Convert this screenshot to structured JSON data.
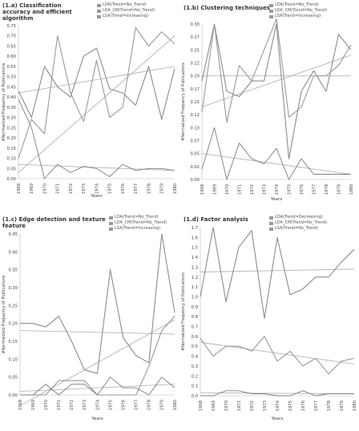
{
  "chart_data": [
    {
      "type": "line",
      "title": "(1.a) Classification accuracy and efficient algorithm",
      "xlabel": "Years",
      "ylabel": "#Normalized Frequency of Publications",
      "x": [
        "1968",
        "1969",
        "1970",
        "1971",
        "1972",
        "1973",
        "1974",
        "1975",
        "1976",
        "1977",
        "1978",
        "1979",
        "1980"
      ],
      "ylim": [
        0,
        0.75
      ],
      "yticks": [
        "0.00",
        "0.05",
        "0.10",
        "0.15",
        "0.20",
        "0.25",
        "0.30",
        "0.35",
        "0.40",
        "0.45",
        "0.50",
        "0.55",
        "0.60",
        "0.65",
        "0.70",
        "0.75"
      ],
      "legend_position": "top-right",
      "series": [
        {
          "name": "LDA(Trend=No_Trend)",
          "values": [
            0.43,
            0.3,
            0.55,
            0.45,
            0.4,
            0.6,
            0.64,
            0.44,
            0.42,
            0.36,
            0.55,
            0.29,
            0.54
          ]
        },
        {
          "name": "LDA_CM(Trend=No_Trend)",
          "values": [
            0.1,
            0.29,
            0.22,
            0.7,
            0.42,
            0.28,
            0.58,
            0.3,
            0.35,
            0.74,
            0.65,
            0.72,
            0.66
          ]
        },
        {
          "name": "LSA(Trend=Increasing)",
          "values": [
            0.39,
            0.25,
            0.0,
            0.07,
            0.03,
            0.06,
            0.05,
            0.01,
            0.07,
            0.04,
            0.05,
            0.05,
            0.04
          ]
        }
      ],
      "trendlines": [
        [
          0.42,
          0.55
        ],
        [
          0.03,
          0.7
        ],
        [
          0.07,
          0.04
        ]
      ]
    },
    {
      "type": "line",
      "title": "(1.b) Clustering techniques",
      "xlabel": "Years",
      "ylabel": "#Normalized Frequency of Publications",
      "x": [
        "1968",
        "1969",
        "1970",
        "1971",
        "1972",
        "1973",
        "1974",
        "1975",
        "1976",
        "1977",
        "1978",
        "1979",
        "1980"
      ],
      "ylim": [
        0,
        0.3
      ],
      "yticks": [
        "0.00",
        "0.02",
        "0.05",
        "0.07",
        "0.10",
        "0.12",
        "0.15",
        "0.17",
        "0.20",
        "0.22",
        "0.25",
        "0.27",
        "0.30"
      ],
      "legend_position": "top-right",
      "series": [
        {
          "name": "LDA(Trend=No_Trend)",
          "values": [
            0.19,
            0.3,
            0.17,
            0.16,
            0.19,
            0.19,
            0.3,
            0.04,
            0.17,
            0.21,
            0.17,
            0.28,
            0.25
          ]
        },
        {
          "name": "LDA_CM(Trend=No_Trend)",
          "values": [
            0.13,
            0.3,
            0.11,
            0.22,
            0.19,
            0.25,
            0.31,
            0.12,
            0.14,
            0.2,
            0.2,
            0.22,
            0.26
          ]
        },
        {
          "name": "LSA(Trend=Increasing)",
          "values": [
            0.02,
            0.1,
            0.0,
            0.07,
            0.04,
            0.03,
            0.06,
            0.0,
            0.04,
            0.01,
            0.01,
            0.01,
            0.01
          ]
        }
      ],
      "trendlines": [
        [
          0.2,
          0.2
        ],
        [
          0.14,
          0.24
        ],
        [
          0.05,
          0.01
        ]
      ]
    },
    {
      "type": "line",
      "title": "(1.c) Edge detection and texture feature",
      "xlabel": "Years",
      "ylabel": "#Normalized Frequency of Publications",
      "x": [
        "1968",
        "1969",
        "1970",
        "1971",
        "1972",
        "1973",
        "1974",
        "1975",
        "1976",
        "1977",
        "1978",
        "1979",
        "1980"
      ],
      "ylim": [
        0,
        0.45
      ],
      "yticks": [
        "0.00",
        "0.05",
        "0.10",
        "0.15",
        "0.20",
        "0.25",
        "0.30",
        "0.35",
        "0.40",
        "0.45"
      ],
      "legend_position": "top-right",
      "series": [
        {
          "name": "LDA(Trend=No_Trend)",
          "values": [
            0.2,
            0.2,
            0.19,
            0.22,
            0.15,
            0.07,
            0.06,
            0.35,
            0.16,
            0.11,
            0.09,
            0.45,
            0.23
          ]
        },
        {
          "name": "LDA_CM(Trend=No_Trend)",
          "values": [
            0.0,
            0.0,
            0.0,
            0.04,
            0.04,
            0.04,
            0.0,
            0.0,
            0.0,
            0.0,
            0.08,
            0.18,
            0.22
          ]
        },
        {
          "name": "LSA(Trend=Increasing)",
          "values": [
            0.0,
            0.0,
            0.03,
            0.0,
            0.03,
            0.03,
            0.0,
            0.05,
            0.02,
            0.02,
            0.0,
            0.05,
            0.02
          ]
        }
      ],
      "trendlines": [
        [
          0.18,
          0.17
        ],
        [
          -0.03,
          0.21
        ],
        [
          0.01,
          0.03
        ]
      ]
    },
    {
      "type": "line",
      "title": "(1.d) Factor analysis",
      "xlabel": "Years",
      "ylabel": "#Normalized Frequency of Publications",
      "x": [
        "1968",
        "1969",
        "1970",
        "1971",
        "1972",
        "1973",
        "1974",
        "1975",
        "1976",
        "1977",
        "1978",
        "1979",
        "1980"
      ],
      "ylim": [
        0,
        1.7
      ],
      "yticks": [
        "0.0",
        "0.1",
        "0.2",
        "0.3",
        "0.4",
        "0.5",
        "0.6",
        "0.7",
        "0.8",
        "0.9",
        "1.0",
        "1.1",
        "1.2",
        "1.3",
        "1.4",
        "1.5",
        "1.6",
        "1.7"
      ],
      "legend_position": "top-right",
      "series": [
        {
          "name": "LDA(Trend=Decreasing)",
          "values": [
            1.0,
            1.7,
            0.95,
            1.5,
            1.67,
            0.78,
            1.6,
            1.02,
            1.08,
            1.2,
            1.2,
            1.35,
            1.48
          ]
        },
        {
          "name": "LDA_CM(Trend=No_Trend)",
          "values": [
            0.58,
            0.4,
            0.5,
            0.5,
            0.45,
            0.6,
            0.35,
            0.45,
            0.3,
            0.38,
            0.22,
            0.35,
            0.38
          ]
        },
        {
          "name": "LSA(Trend=No_Trend)",
          "values": [
            0.0,
            0.0,
            0.05,
            0.05,
            0.02,
            0.02,
            0.0,
            0.0,
            0.05,
            0.0,
            0.02,
            0.02,
            0.02
          ]
        }
      ],
      "trendlines": [
        [
          1.25,
          1.28
        ],
        [
          0.54,
          0.32
        ],
        [
          0.03,
          0.02
        ]
      ]
    }
  ]
}
